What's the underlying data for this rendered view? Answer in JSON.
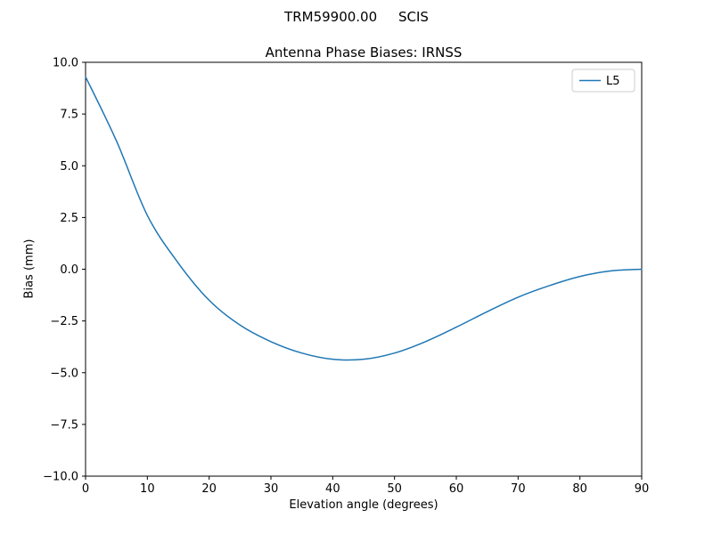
{
  "figure": {
    "suptitle": "TRM59900.00     SCIS"
  },
  "chart_data": {
    "type": "line",
    "suptitle": "TRM59900.00     SCIS",
    "title": "Antenna Phase Biases: IRNSS",
    "xlabel": "Elevation angle (degrees)",
    "ylabel": "Bias (mm)",
    "xlim": [
      0,
      90
    ],
    "ylim": [
      -10,
      10
    ],
    "xticks": [
      0,
      10,
      20,
      30,
      40,
      50,
      60,
      70,
      80,
      90
    ],
    "xtick_labels": [
      "0",
      "10",
      "20",
      "30",
      "40",
      "50",
      "60",
      "70",
      "80",
      "90"
    ],
    "yticks": [
      -10.0,
      -7.5,
      -5.0,
      -2.5,
      0.0,
      2.5,
      5.0,
      7.5,
      10.0
    ],
    "ytick_labels": [
      "−10.0",
      "−7.5",
      "−5.0",
      "−2.5",
      "0.0",
      "2.5",
      "5.0",
      "7.5",
      "10.0"
    ],
    "grid": false,
    "legend_position": "upper right",
    "axes_color": "#000000",
    "background_color": "#ffffff",
    "legend_edge_color": "#cccccc",
    "series": [
      {
        "name": "L5",
        "color": "#1f77b4",
        "x": [
          0,
          5,
          10,
          15,
          20,
          25,
          30,
          35,
          40,
          45,
          50,
          55,
          60,
          65,
          70,
          75,
          80,
          85,
          90
        ],
        "y": [
          9.3,
          6.2,
          2.6,
          0.3,
          -1.5,
          -2.7,
          -3.5,
          -4.05,
          -4.35,
          -4.35,
          -4.05,
          -3.5,
          -2.8,
          -2.05,
          -1.35,
          -0.8,
          -0.35,
          -0.08,
          0.0
        ]
      }
    ]
  }
}
